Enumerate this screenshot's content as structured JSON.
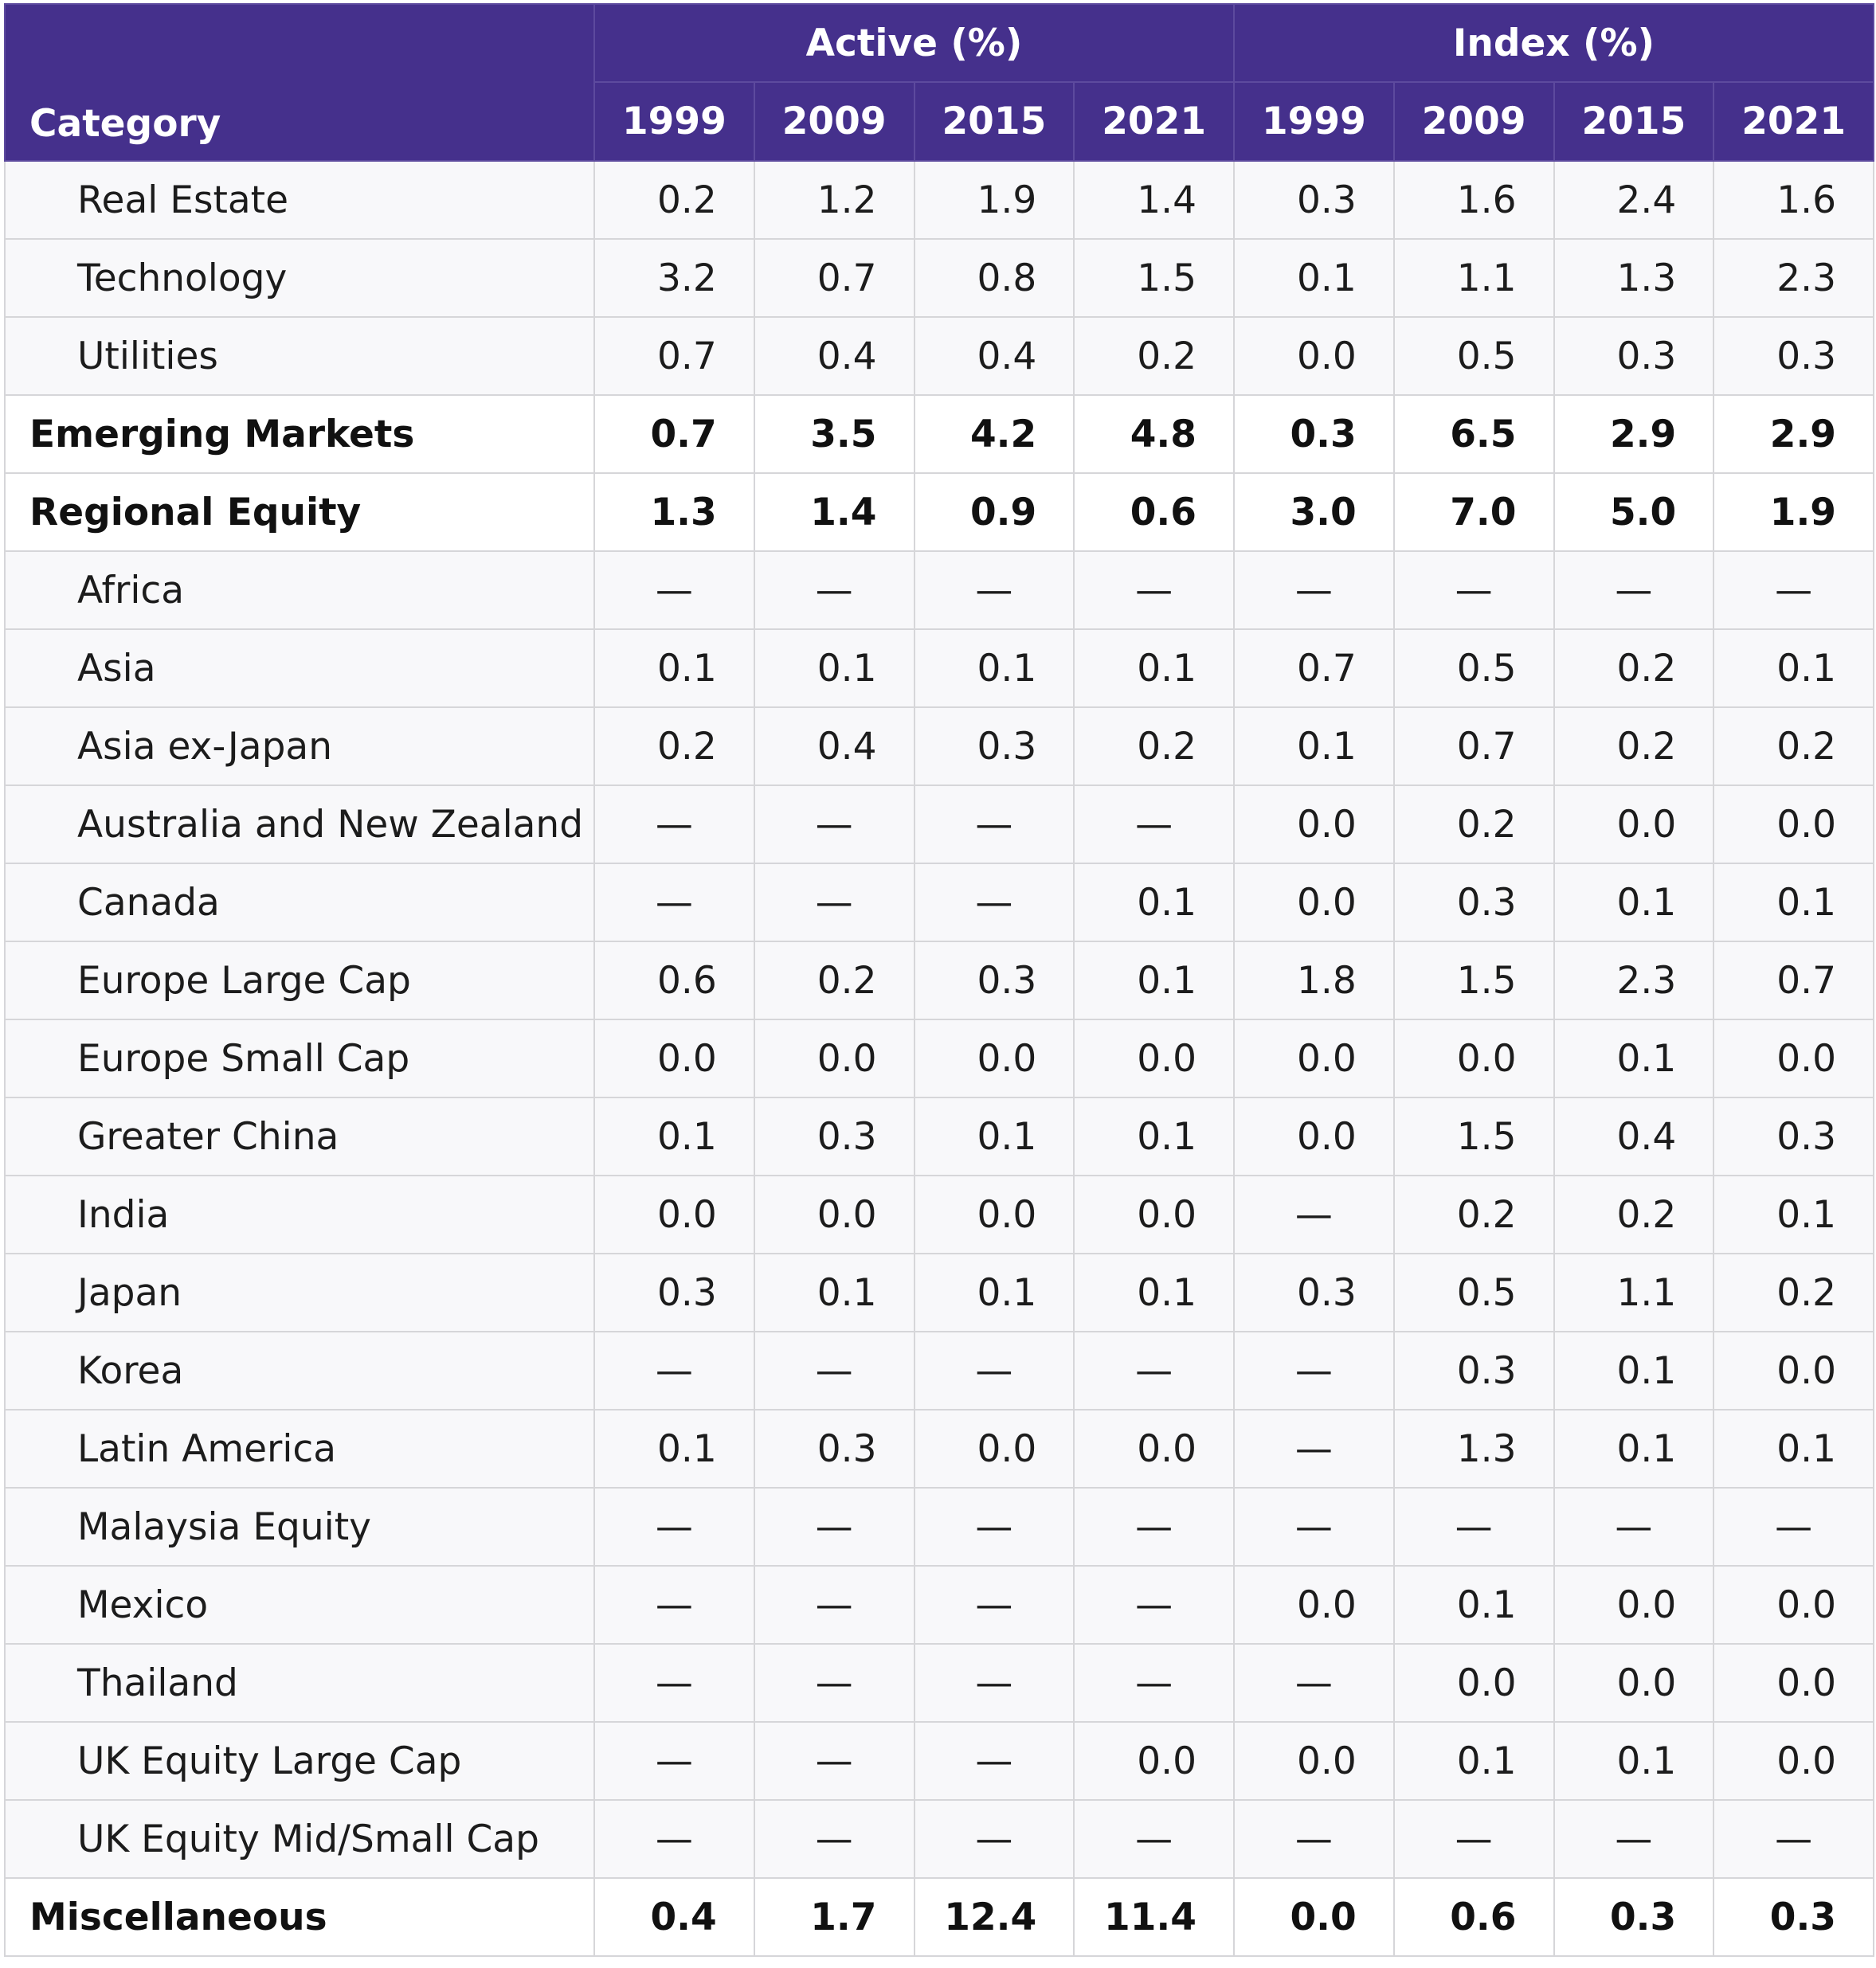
{
  "header": {
    "category_label": "Category",
    "groups": [
      "Active (%)",
      "Index (%)"
    ],
    "years": [
      "1999",
      "2009",
      "2015",
      "2021",
      "1999",
      "2009",
      "2015",
      "2021"
    ]
  },
  "rows": [
    {
      "label": "Real Estate",
      "bold": false,
      "values": [
        "0.2",
        "1.2",
        "1.9",
        "1.4",
        "0.3",
        "1.6",
        "2.4",
        "1.6"
      ]
    },
    {
      "label": "Technology",
      "bold": false,
      "values": [
        "3.2",
        "0.7",
        "0.8",
        "1.5",
        "0.1",
        "1.1",
        "1.3",
        "2.3"
      ]
    },
    {
      "label": "Utilities",
      "bold": false,
      "values": [
        "0.7",
        "0.4",
        "0.4",
        "0.2",
        "0.0",
        "0.5",
        "0.3",
        "0.3"
      ]
    },
    {
      "label": "Emerging Markets",
      "bold": true,
      "values": [
        "0.7",
        "3.5",
        "4.2",
        "4.8",
        "0.3",
        "6.5",
        "2.9",
        "2.9"
      ]
    },
    {
      "label": "Regional Equity",
      "bold": true,
      "values": [
        "1.3",
        "1.4",
        "0.9",
        "0.6",
        "3.0",
        "7.0",
        "5.0",
        "1.9"
      ]
    },
    {
      "label": "Africa",
      "bold": false,
      "values": [
        "—",
        "—",
        "—",
        "—",
        "—",
        "—",
        "—",
        "—"
      ]
    },
    {
      "label": "Asia",
      "bold": false,
      "values": [
        "0.1",
        "0.1",
        "0.1",
        "0.1",
        "0.7",
        "0.5",
        "0.2",
        "0.1"
      ]
    },
    {
      "label": "Asia ex-Japan",
      "bold": false,
      "values": [
        "0.2",
        "0.4",
        "0.3",
        "0.2",
        "0.1",
        "0.7",
        "0.2",
        "0.2"
      ]
    },
    {
      "label": "Australia and New Zealand",
      "bold": false,
      "values": [
        "—",
        "—",
        "—",
        "—",
        "0.0",
        "0.2",
        "0.0",
        "0.0"
      ]
    },
    {
      "label": "Canada",
      "bold": false,
      "values": [
        "—",
        "—",
        "—",
        "0.1",
        "0.0",
        "0.3",
        "0.1",
        "0.1"
      ]
    },
    {
      "label": "Europe Large Cap",
      "bold": false,
      "values": [
        "0.6",
        "0.2",
        "0.3",
        "0.1",
        "1.8",
        "1.5",
        "2.3",
        "0.7"
      ]
    },
    {
      "label": "Europe Small Cap",
      "bold": false,
      "values": [
        "0.0",
        "0.0",
        "0.0",
        "0.0",
        "0.0",
        "0.0",
        "0.1",
        "0.0"
      ]
    },
    {
      "label": "Greater China",
      "bold": false,
      "values": [
        "0.1",
        "0.3",
        "0.1",
        "0.1",
        "0.0",
        "1.5",
        "0.4",
        "0.3"
      ]
    },
    {
      "label": "India",
      "bold": false,
      "values": [
        "0.0",
        "0.0",
        "0.0",
        "0.0",
        "—",
        "0.2",
        "0.2",
        "0.1"
      ]
    },
    {
      "label": "Japan",
      "bold": false,
      "values": [
        "0.3",
        "0.1",
        "0.1",
        "0.1",
        "0.3",
        "0.5",
        "1.1",
        "0.2"
      ]
    },
    {
      "label": "Korea",
      "bold": false,
      "values": [
        "—",
        "—",
        "—",
        "—",
        "—",
        "0.3",
        "0.1",
        "0.0"
      ]
    },
    {
      "label": "Latin America",
      "bold": false,
      "values": [
        "0.1",
        "0.3",
        "0.0",
        "0.0",
        "—",
        "1.3",
        "0.1",
        "0.1"
      ]
    },
    {
      "label": "Malaysia Equity",
      "bold": false,
      "values": [
        "—",
        "—",
        "—",
        "—",
        "—",
        "—",
        "—",
        "—"
      ]
    },
    {
      "label": "Mexico",
      "bold": false,
      "values": [
        "—",
        "—",
        "—",
        "—",
        "0.0",
        "0.1",
        "0.0",
        "0.0"
      ]
    },
    {
      "label": "Thailand",
      "bold": false,
      "values": [
        "—",
        "—",
        "—",
        "—",
        "—",
        "0.0",
        "0.0",
        "0.0"
      ]
    },
    {
      "label": "UK Equity Large Cap",
      "bold": false,
      "values": [
        "—",
        "—",
        "—",
        "0.0",
        "0.0",
        "0.1",
        "0.1",
        "0.0"
      ]
    },
    {
      "label": "UK Equity Mid/Small Cap",
      "bold": false,
      "values": [
        "—",
        "—",
        "—",
        "—",
        "—",
        "—",
        "—",
        "—"
      ]
    },
    {
      "label": "Miscellaneous",
      "bold": true,
      "values": [
        "0.4",
        "1.7",
        "12.4",
        "11.4",
        "0.0",
        "0.6",
        "0.3",
        "0.3"
      ]
    }
  ]
}
